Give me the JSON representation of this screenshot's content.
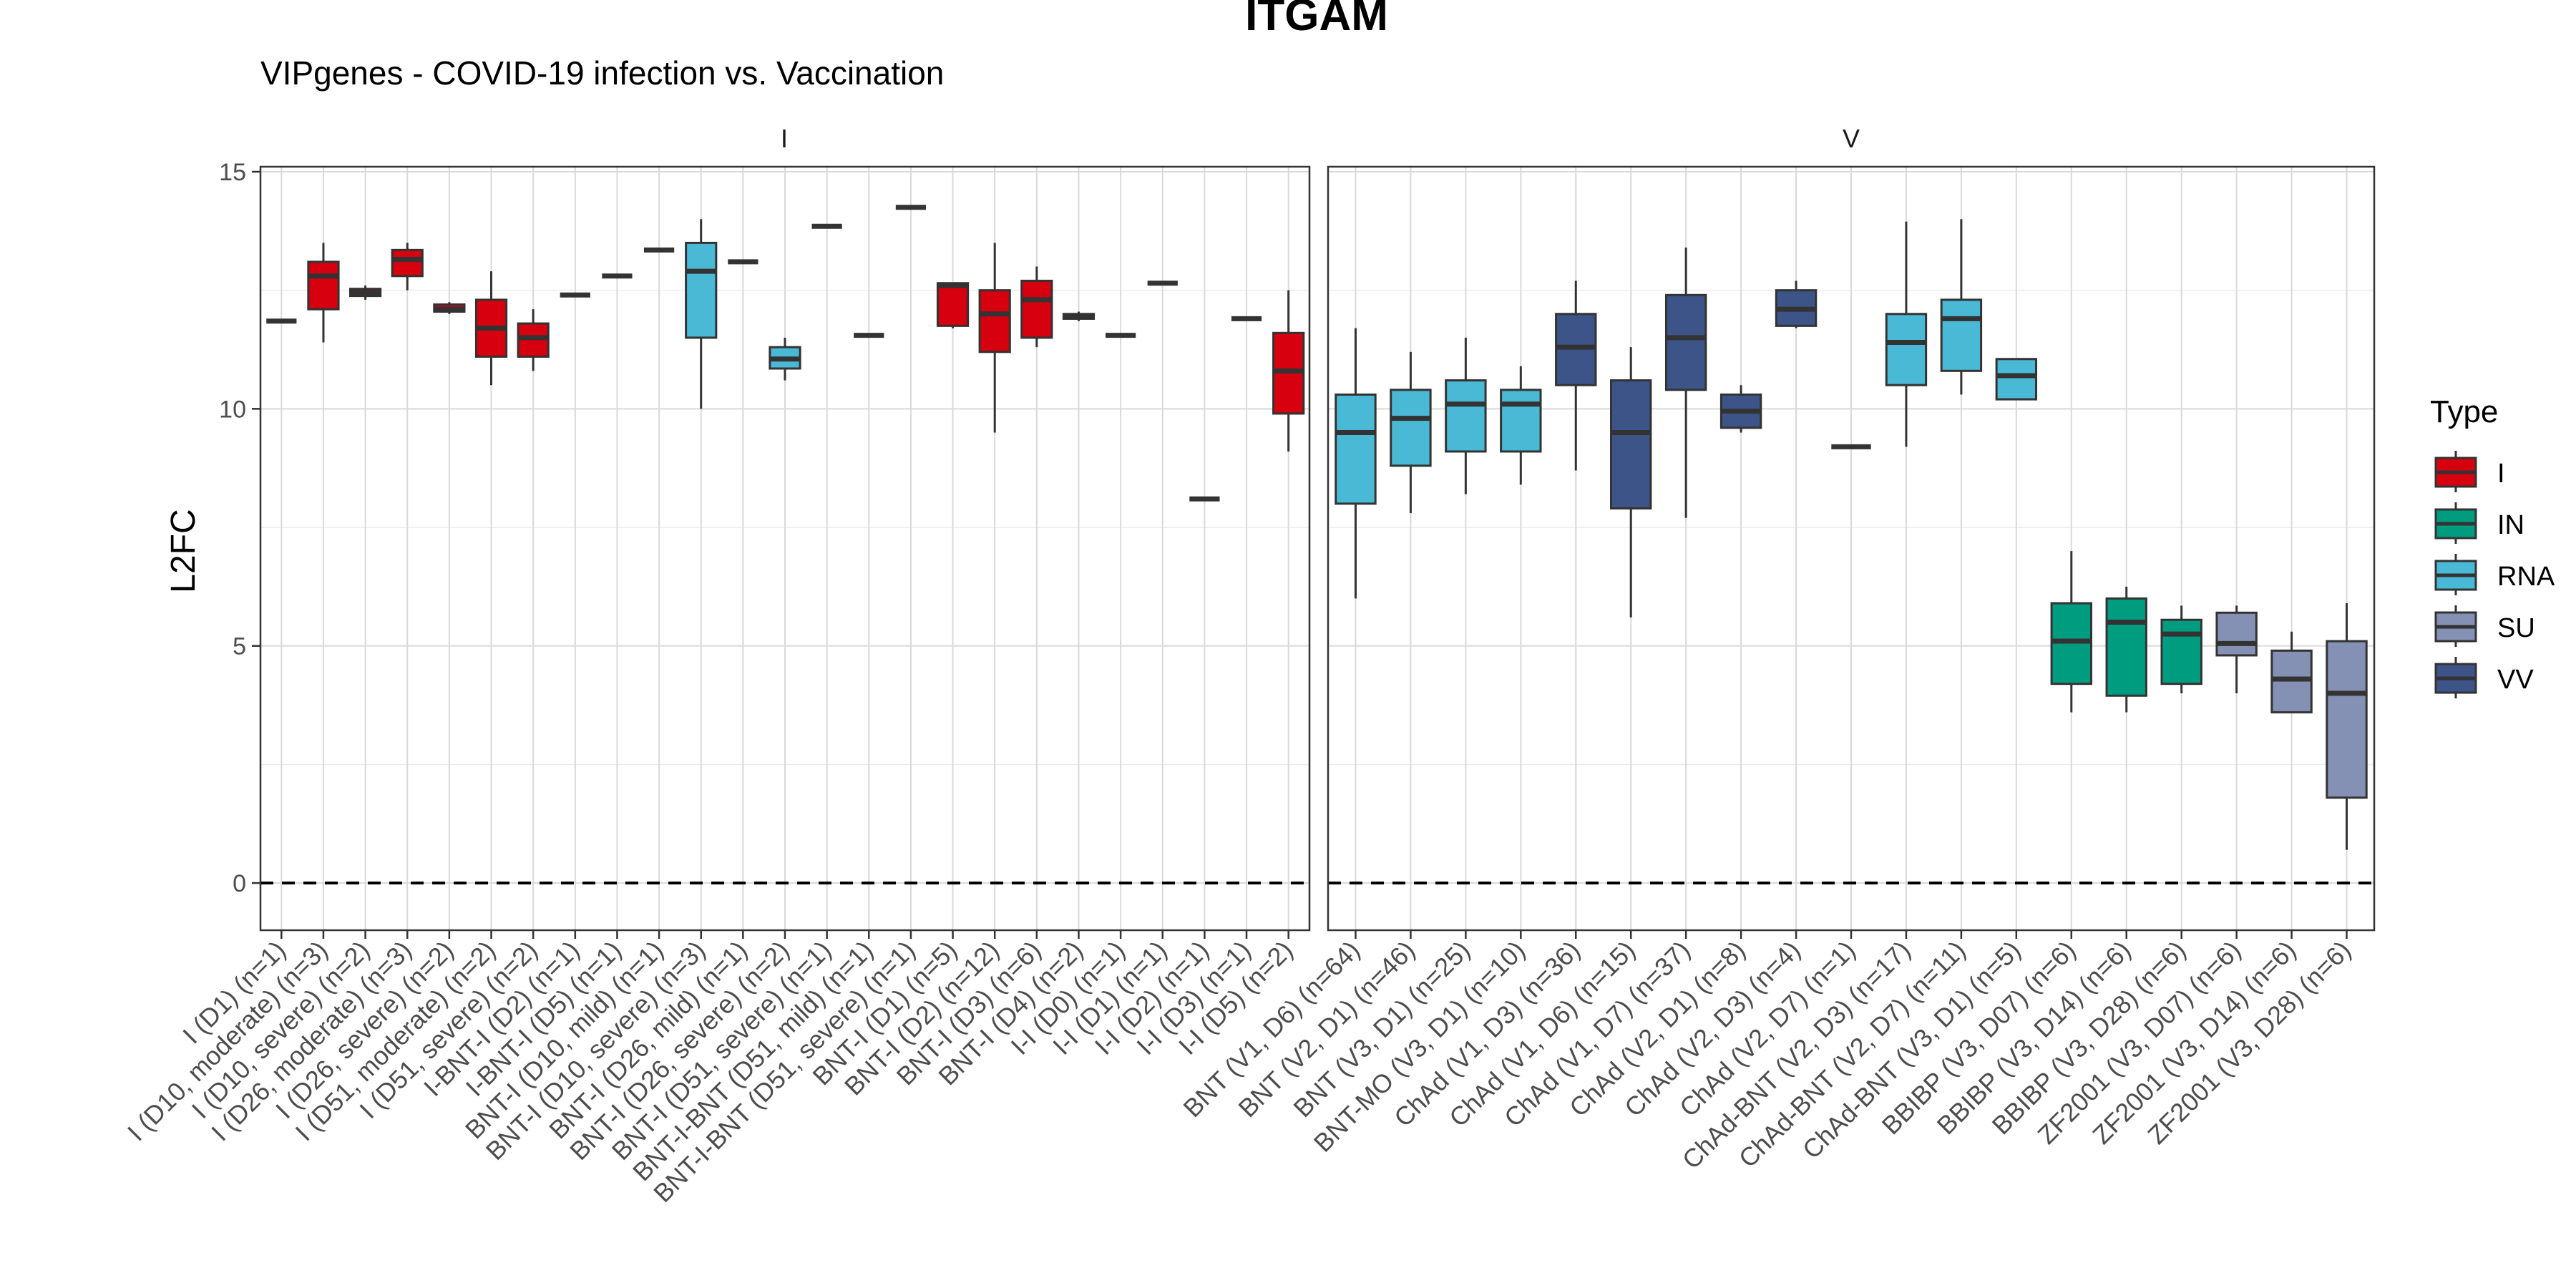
{
  "title": "ITGAM",
  "subtitle": "VIPgenes - COVID-19 infection vs. Vaccination",
  "chart_data": {
    "type": "boxplot",
    "ylabel": "L2FC",
    "xlabel": "",
    "ylim": [
      -1,
      15
    ],
    "yticks": [
      0,
      5,
      10,
      15
    ],
    "reference_line": {
      "y": 0,
      "style": "dashed"
    },
    "grid": true,
    "legend": {
      "title": "Type",
      "placement": "right",
      "entries": [
        {
          "name": "I",
          "color": "#D7000F"
        },
        {
          "name": "IN",
          "color": "#009C7F"
        },
        {
          "name": "RNA",
          "color": "#4AB9D5"
        },
        {
          "name": "SU",
          "color": "#8491B4"
        },
        {
          "name": "VV",
          "color": "#3C5488"
        }
      ]
    },
    "facets": [
      {
        "label": "I",
        "groups": [
          {
            "label": "I (D1) (n=1)",
            "type": "I",
            "min": 11.85,
            "q1": 11.85,
            "median": 11.85,
            "q3": 11.85,
            "max": 11.85
          },
          {
            "label": "I (D10, moderate) (n=3)",
            "type": "I",
            "min": 11.4,
            "q1": 12.1,
            "median": 12.8,
            "q3": 13.1,
            "max": 13.5
          },
          {
            "label": "I (D10, severe) (n=2)",
            "type": "I",
            "min": 12.3,
            "q1": 12.38,
            "median": 12.45,
            "q3": 12.53,
            "max": 12.6
          },
          {
            "label": "I (D26, moderate) (n=3)",
            "type": "I",
            "min": 12.5,
            "q1": 12.8,
            "median": 13.15,
            "q3": 13.35,
            "max": 13.5
          },
          {
            "label": "I (D26, severe) (n=2)",
            "type": "I",
            "min": 12.0,
            "q1": 12.05,
            "median": 12.1,
            "q3": 12.2,
            "max": 12.25
          },
          {
            "label": "I (D51, moderate) (n=2)",
            "type": "I",
            "min": 10.5,
            "q1": 11.1,
            "median": 11.7,
            "q3": 12.3,
            "max": 12.9
          },
          {
            "label": "I (D51, severe) (n=2)",
            "type": "I",
            "min": 10.8,
            "q1": 11.1,
            "median": 11.5,
            "q3": 11.8,
            "max": 12.1
          },
          {
            "label": "I-BNT-I (D2) (n=1)",
            "type": "I",
            "min": 12.4,
            "q1": 12.4,
            "median": 12.4,
            "q3": 12.4,
            "max": 12.4
          },
          {
            "label": "I-BNT-I (D5) (n=1)",
            "type": "I",
            "min": 12.8,
            "q1": 12.8,
            "median": 12.8,
            "q3": 12.8,
            "max": 12.8
          },
          {
            "label": "BNT-I (D10, mild) (n=1)",
            "type": "I",
            "min": 13.35,
            "q1": 13.35,
            "median": 13.35,
            "q3": 13.35,
            "max": 13.35
          },
          {
            "label": "BNT-I (D10, severe) (n=3)",
            "type": "RNA",
            "min": 10.0,
            "q1": 11.5,
            "median": 12.9,
            "q3": 13.5,
            "max": 14.0
          },
          {
            "label": "BNT-I (D26, mild) (n=1)",
            "type": "I",
            "min": 13.1,
            "q1": 13.1,
            "median": 13.1,
            "q3": 13.1,
            "max": 13.1
          },
          {
            "label": "BNT-I (D26, severe) (n=2)",
            "type": "RNA",
            "min": 10.6,
            "q1": 10.85,
            "median": 11.05,
            "q3": 11.3,
            "max": 11.5
          },
          {
            "label": "BNT-I (D51, severe) (n=1)",
            "type": "I",
            "min": 13.85,
            "q1": 13.85,
            "median": 13.85,
            "q3": 13.85,
            "max": 13.85
          },
          {
            "label": "BNT-I-BNT (D51, mild) (n=1)",
            "type": "I",
            "min": 11.55,
            "q1": 11.55,
            "median": 11.55,
            "q3": 11.55,
            "max": 11.55
          },
          {
            "label": "BNT-I-BNT (D51, severe) (n=1)",
            "type": "I",
            "min": 14.25,
            "q1": 14.25,
            "median": 14.25,
            "q3": 14.25,
            "max": 14.25
          },
          {
            "label": "BNT-I (D1) (n=5)",
            "type": "I",
            "min": 11.7,
            "q1": 11.75,
            "median": 12.6,
            "q3": 12.65,
            "max": 12.65
          },
          {
            "label": "BNT-I (D2) (n=12)",
            "type": "I",
            "min": 9.5,
            "q1": 11.2,
            "median": 12.0,
            "q3": 12.5,
            "max": 13.5
          },
          {
            "label": "BNT-I (D3) (n=6)",
            "type": "I",
            "min": 11.3,
            "q1": 11.5,
            "median": 12.3,
            "q3": 12.7,
            "max": 13.0
          },
          {
            "label": "BNT-I (D4) (n=2)",
            "type": "I",
            "min": 11.85,
            "q1": 11.9,
            "median": 11.95,
            "q3": 12.0,
            "max": 12.05
          },
          {
            "label": "I-I (D0) (n=1)",
            "type": "I",
            "min": 11.55,
            "q1": 11.55,
            "median": 11.55,
            "q3": 11.55,
            "max": 11.55
          },
          {
            "label": "I-I (D1) (n=1)",
            "type": "I",
            "min": 12.65,
            "q1": 12.65,
            "median": 12.65,
            "q3": 12.65,
            "max": 12.65
          },
          {
            "label": "I-I (D2) (n=1)",
            "type": "I",
            "min": 8.1,
            "q1": 8.1,
            "median": 8.1,
            "q3": 8.1,
            "max": 8.1
          },
          {
            "label": "I-I (D3) (n=1)",
            "type": "I",
            "min": 11.9,
            "q1": 11.9,
            "median": 11.9,
            "q3": 11.9,
            "max": 11.9
          },
          {
            "label": "I-I (D5) (n=2)",
            "type": "I",
            "min": 9.1,
            "q1": 9.9,
            "median": 10.8,
            "q3": 11.6,
            "max": 12.5
          }
        ]
      },
      {
        "label": "V",
        "groups": [
          {
            "label": "BNT (V1, D6) (n=64)",
            "type": "RNA",
            "min": 6.0,
            "q1": 8.0,
            "median": 9.5,
            "q3": 10.3,
            "max": 11.7
          },
          {
            "label": "BNT (V2, D1) (n=46)",
            "type": "RNA",
            "min": 7.8,
            "q1": 8.8,
            "median": 9.8,
            "q3": 10.4,
            "max": 11.2
          },
          {
            "label": "BNT (V3, D1) (n=25)",
            "type": "RNA",
            "min": 8.2,
            "q1": 9.1,
            "median": 10.1,
            "q3": 10.6,
            "max": 11.5
          },
          {
            "label": "BNT-MO (V3, D1) (n=10)",
            "type": "RNA",
            "min": 8.4,
            "q1": 9.1,
            "median": 10.1,
            "q3": 10.4,
            "max": 10.9
          },
          {
            "label": "ChAd (V1, D3) (n=36)",
            "type": "VV",
            "min": 8.7,
            "q1": 10.5,
            "median": 11.3,
            "q3": 12.0,
            "max": 12.7
          },
          {
            "label": "ChAd (V1, D6) (n=15)",
            "type": "VV",
            "min": 5.6,
            "q1": 7.9,
            "median": 9.5,
            "q3": 10.6,
            "max": 11.3
          },
          {
            "label": "ChAd (V1, D7) (n=37)",
            "type": "VV",
            "min": 7.7,
            "q1": 10.4,
            "median": 11.5,
            "q3": 12.4,
            "max": 13.4
          },
          {
            "label": "ChAd (V2, D1) (n=8)",
            "type": "VV",
            "min": 9.5,
            "q1": 9.6,
            "median": 9.95,
            "q3": 10.3,
            "max": 10.5
          },
          {
            "label": "ChAd (V2, D3) (n=4)",
            "type": "VV",
            "min": 11.7,
            "q1": 11.75,
            "median": 12.1,
            "q3": 12.5,
            "max": 12.7
          },
          {
            "label": "ChAd (V2, D7) (n=1)",
            "type": "VV",
            "min": 9.2,
            "q1": 9.2,
            "median": 9.2,
            "q3": 9.2,
            "max": 9.2
          },
          {
            "label": "ChAd-BNT (V2, D3) (n=17)",
            "type": "RNA",
            "min": 9.2,
            "q1": 10.5,
            "median": 11.4,
            "q3": 12.0,
            "max": 13.95
          },
          {
            "label": "ChAd-BNT (V2, D7) (n=11)",
            "type": "RNA",
            "min": 10.3,
            "q1": 10.8,
            "median": 11.9,
            "q3": 12.3,
            "max": 14.0
          },
          {
            "label": "ChAd-BNT (V3, D1) (n=5)",
            "type": "RNA",
            "min": 10.2,
            "q1": 10.2,
            "median": 10.7,
            "q3": 11.05,
            "max": 11.05
          },
          {
            "label": "BBIBP (V3, D07) (n=6)",
            "type": "IN",
            "min": 3.6,
            "q1": 4.2,
            "median": 5.1,
            "q3": 5.9,
            "max": 7.0
          },
          {
            "label": "BBIBP (V3, D14) (n=6)",
            "type": "IN",
            "min": 3.6,
            "q1": 3.95,
            "median": 5.5,
            "q3": 6.0,
            "max": 6.25
          },
          {
            "label": "BBIBP (V3, D28) (n=6)",
            "type": "IN",
            "min": 4.0,
            "q1": 4.2,
            "median": 5.25,
            "q3": 5.55,
            "max": 5.85
          },
          {
            "label": "ZF2001 (V3, D07) (n=6)",
            "type": "SU",
            "min": 4.0,
            "q1": 4.8,
            "median": 5.05,
            "q3": 5.7,
            "max": 5.85
          },
          {
            "label": "ZF2001 (V3, D14) (n=6)",
            "type": "SU",
            "min": 3.6,
            "q1": 3.6,
            "median": 4.3,
            "q3": 4.9,
            "max": 5.3
          },
          {
            "label": "ZF2001 (V3, D28) (n=6)",
            "type": "SU",
            "min": 0.7,
            "q1": 1.8,
            "median": 4.0,
            "q3": 5.1,
            "max": 5.9
          }
        ]
      }
    ]
  }
}
